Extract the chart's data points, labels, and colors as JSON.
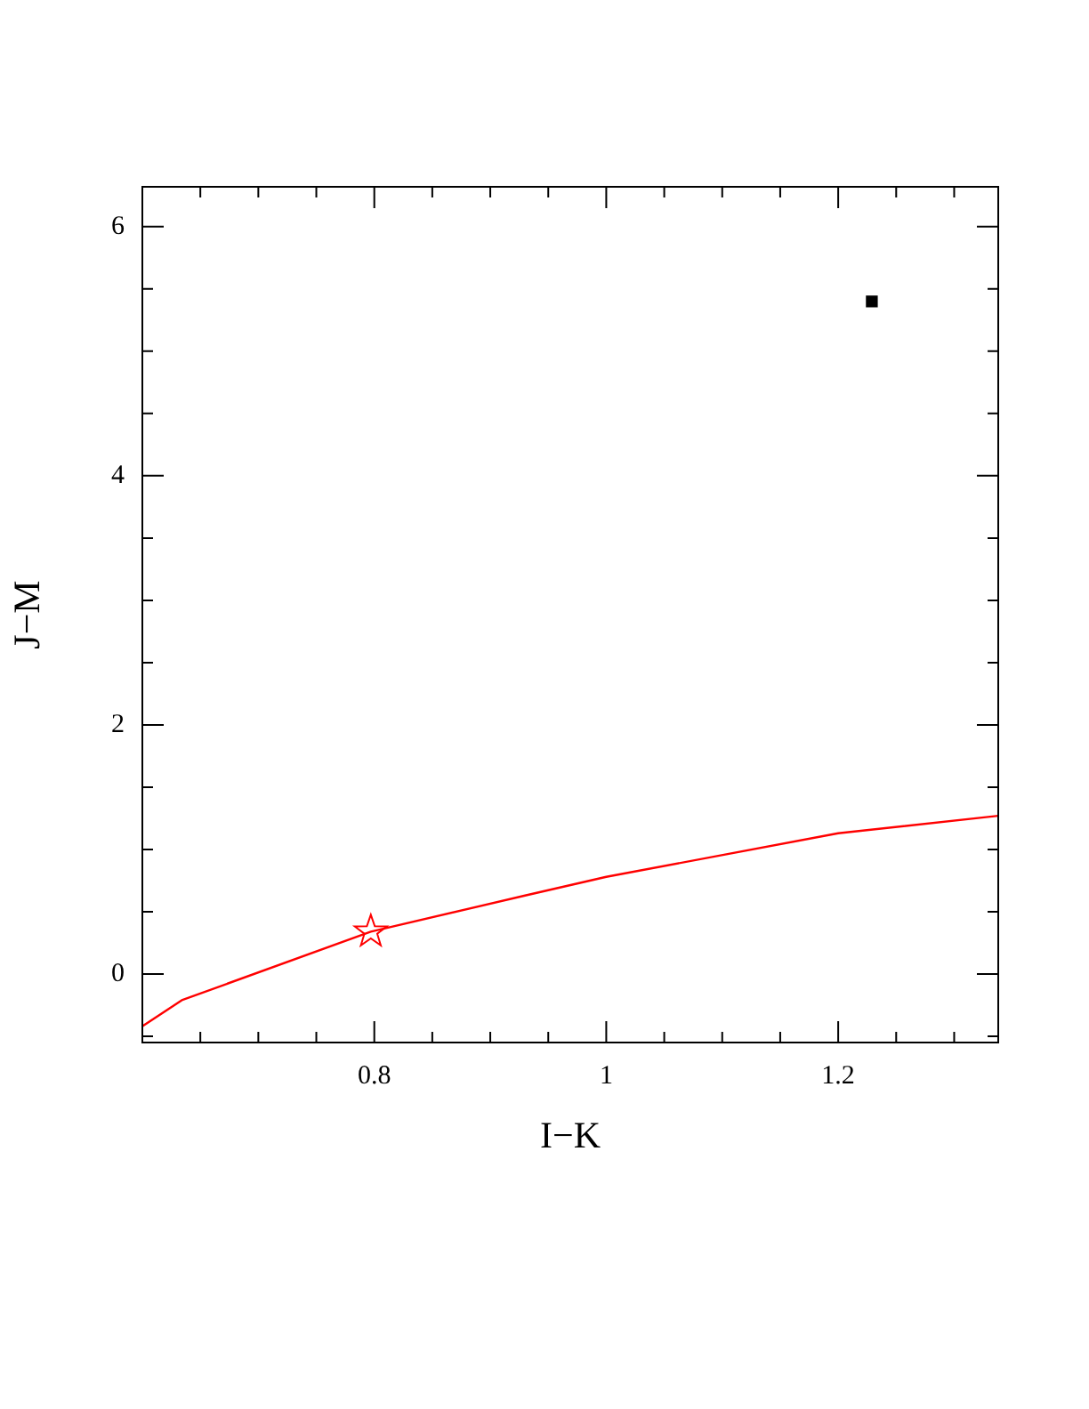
{
  "chart_data": {
    "type": "line",
    "xlabel": "I−K",
    "ylabel": "J−M",
    "xlim": [
      0.6,
      1.338
    ],
    "ylim": [
      -0.55,
      6.32
    ],
    "xticks": [
      {
        "value": 0.6,
        "label": null
      },
      {
        "value": 0.65,
        "label": null
      },
      {
        "value": 0.7,
        "label": null
      },
      {
        "value": 0.75,
        "label": null
      },
      {
        "value": 0.8,
        "label": "0.8"
      },
      {
        "value": 0.85,
        "label": null
      },
      {
        "value": 0.9,
        "label": null
      },
      {
        "value": 0.95,
        "label": null
      },
      {
        "value": 1,
        "label": "1"
      },
      {
        "value": 1.05,
        "label": null
      },
      {
        "value": 1.1,
        "label": null
      },
      {
        "value": 1.15,
        "label": null
      },
      {
        "value": 1.2,
        "label": "1.2"
      },
      {
        "value": 1.25,
        "label": null
      },
      {
        "value": 1.3,
        "label": null
      }
    ],
    "yticks": [
      {
        "value": -0.5,
        "label": null
      },
      0,
      {
        "value": 0.5,
        "label": null
      },
      {
        "value": 1,
        "label": null
      },
      {
        "value": 1.5,
        "label": null
      },
      2,
      {
        "value": 2.5,
        "label": null
      },
      {
        "value": 3,
        "label": null
      },
      {
        "value": 3.5,
        "label": null
      },
      4,
      {
        "value": 4.5,
        "label": null
      },
      {
        "value": 5,
        "label": null
      },
      {
        "value": 5.5,
        "label": null
      },
      6
    ],
    "series": [
      {
        "color": "#ff0000",
        "x": [
          0.6,
          0.634,
          0.797,
          0.93,
          1.0,
          1.2,
          1.338
        ],
        "values": [
          -0.42,
          -0.21,
          0.34,
          0.63,
          0.78,
          1.13,
          1.27
        ]
      },
      {
        "type": "scatter",
        "color": "#ff0000",
        "marker": "star",
        "x": [
          0.797
        ],
        "values": [
          0.34
        ]
      },
      {
        "type": "scatter",
        "color": "#000000",
        "marker": "square",
        "x": [
          1.229
        ],
        "values": [
          5.4
        ]
      }
    ]
  }
}
